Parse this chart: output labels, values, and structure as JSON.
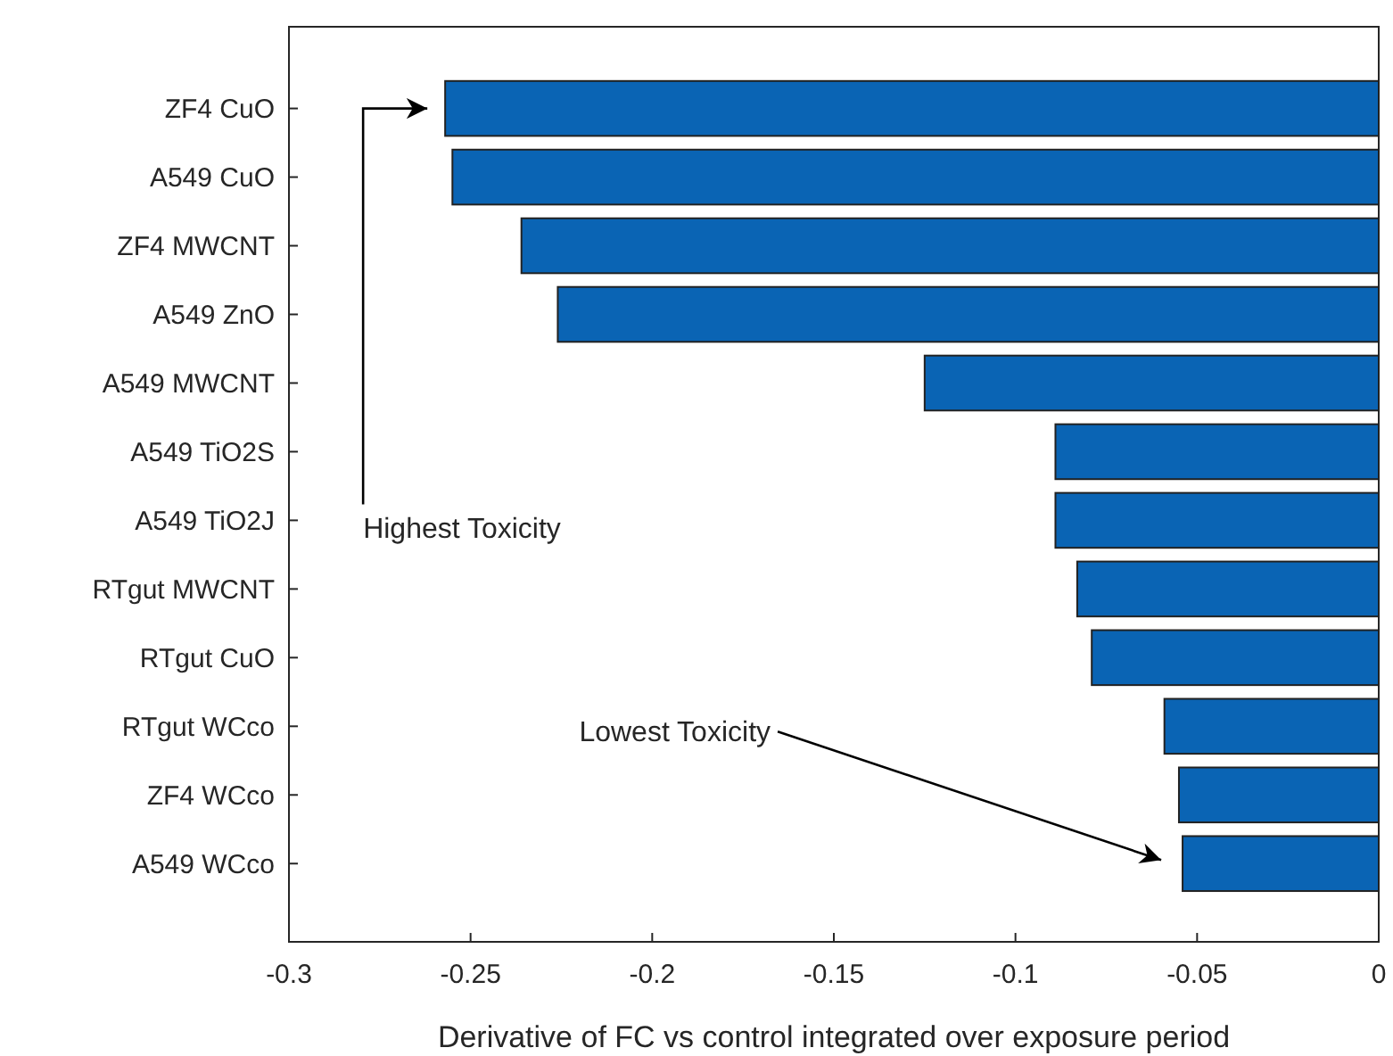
{
  "chart_data": {
    "type": "bar",
    "orientation": "horizontal",
    "xlabel": "Derivative of FC vs control integrated over exposure period",
    "categories": [
      "ZF4 CuO",
      "A549 CuO",
      "ZF4 MWCNT",
      "A549 ZnO",
      "A549 MWCNT",
      "A549 TiO2S",
      "A549 TiO2J",
      "RTgut MWCNT",
      "RTgut CuO",
      "RTgut WCco",
      "ZF4 WCco",
      "A549 WCco"
    ],
    "values": [
      -0.257,
      -0.255,
      -0.236,
      -0.226,
      -0.125,
      -0.089,
      -0.089,
      -0.083,
      -0.079,
      -0.059,
      -0.055,
      -0.054
    ],
    "color": "#0a64b4",
    "xlim": [
      -0.3,
      0
    ],
    "xticks": [
      -0.3,
      -0.25,
      -0.2,
      -0.15,
      -0.1,
      -0.05,
      0
    ],
    "grid": false,
    "annotations": [
      "Highest Toxicity",
      "Lowest Toxicity"
    ]
  }
}
